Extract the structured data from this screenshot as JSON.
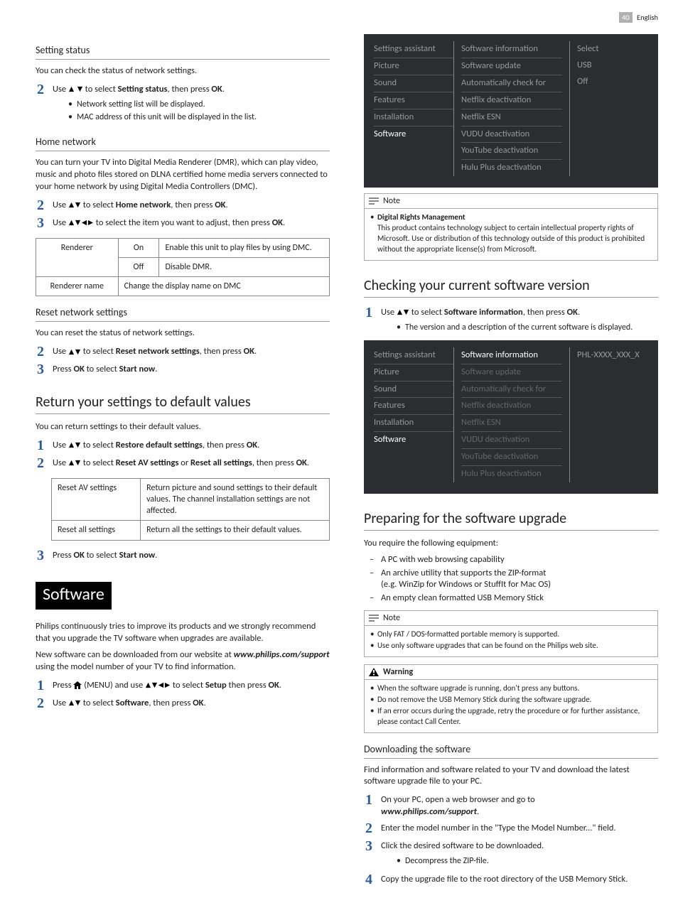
{
  "page": {
    "number": "40",
    "lang": "English"
  },
  "left": {
    "settingStatus": {
      "heading": "Setting status",
      "intro": "You can check the status of network settings.",
      "step2_pre": "Use ",
      "step2_mid": " to select ",
      "step2_target": "Setting status",
      "step2_post": ", then press ",
      "step2_ok": "OK",
      "b1": "Network setting list will be displayed.",
      "b2": "MAC address of this unit will be displayed in the list."
    },
    "homeNetwork": {
      "heading": "Home network",
      "intro": "You can turn your TV into Digital Media Renderer (DMR), which can play video, music and photo files stored on DLNA certified home media servers connected to your home network by using Digital Media Controllers (DMC).",
      "s2_pre": "Use ",
      "s2_mid": " to select ",
      "s2_target": "Home network",
      "s2_post": ", then press ",
      "s2_ok": "OK",
      "s3_pre": "Use ",
      "s3_mid": " to select the item you want to adjust, then press ",
      "s3_ok": "OK",
      "table": {
        "r1c1": "Renderer",
        "r1c2a": "On",
        "r1c3a": "Enable this unit to play files by using DMC.",
        "r1c2b": "Off",
        "r1c3b": "Disable DMR.",
        "r2c1": "Renderer name",
        "r2c2": "Change the display name on DMC"
      }
    },
    "resetNet": {
      "heading": "Reset network settings",
      "intro": "You can reset the status of network settings.",
      "s2_pre": "Use ",
      "s2_mid": " to select ",
      "s2_target": "Reset network settings",
      "s2_post": ", then press ",
      "s2_ok": "OK",
      "s3_pre": "Press ",
      "s3_ok": "OK",
      "s3_mid": " to select ",
      "s3_target": "Start now"
    },
    "returnDefaults": {
      "heading": "Return your settings to default values",
      "intro": "You can return settings to their default values.",
      "s1_pre": "Use ",
      "s1_mid": " to select ",
      "s1_target": "Restore default settings",
      "s1_post": ", then press ",
      "s1_ok": "OK",
      "s2_pre": "Use ",
      "s2_mid": " to select ",
      "s2_t1": "Reset AV settings",
      "s2_or": " or ",
      "s2_t2": "Reset all settings",
      "s2_post": ", then press ",
      "s2_ok": "OK",
      "table": {
        "r1c1": "Reset AV settings",
        "r1c2": "Return picture and sound settings to their default values. The channel installation settings are not affected.",
        "r2c1": "Reset all settings",
        "r2c2": "Return all the settings to their default values."
      },
      "s3_pre": "Press ",
      "s3_ok": "OK",
      "s3_mid": " to select ",
      "s3_target": "Start now"
    },
    "software": {
      "heading": "Software",
      "p1": "Philips continuously tries to improve its products and we strongly recommend that you upgrade the TV software when upgrades are available.",
      "p2_pre": "New software can be downloaded from our website at ",
      "p2_url": "www.philips.com/support",
      "p2_post": " using the model number of your TV to find information.",
      "s1_pre": "Press ",
      "s1_menu": " (MENU) and use ",
      "s1_mid": " to select ",
      "s1_target": "Setup",
      "s1_post": " then press ",
      "s1_ok": "OK",
      "s2_pre": "Use ",
      "s2_mid": " to select ",
      "s2_target": "Software",
      "s2_post": ", then press ",
      "s2_ok": "OK"
    }
  },
  "right": {
    "menu1": {
      "left": [
        "Settings assistant",
        "Picture",
        "Sound",
        "Features",
        "Installation",
        "Software"
      ],
      "leftActiveIndex": 5,
      "mid": [
        "Software information",
        "Software update",
        "Automatically check for",
        "Netflix deactivation",
        "Netflix ESN",
        "VUDU deactivation",
        "YouTube deactivation",
        "Hulu Plus deactivation"
      ],
      "right": [
        "Select",
        "USB",
        "Off"
      ]
    },
    "note1": {
      "label": "Note",
      "bold": "Digital Rights Management",
      "text": "This product contains technology subject to certain intellectual property rights of Microsoft. Use or distribution of this technology outside of this product is prohibited without the appropriate license(s) from Microsoft."
    },
    "checking": {
      "heading": "Checking your current software version",
      "s1_pre": "Use ",
      "s1_mid": " to select ",
      "s1_target": "Software information",
      "s1_post": ", then press ",
      "s1_ok": "OK",
      "b1": "The version and a description of the current software is displayed."
    },
    "menu2": {
      "left": [
        "Settings assistant",
        "Picture",
        "Sound",
        "Features",
        "Installation",
        "Software"
      ],
      "leftActiveIndex": 5,
      "mid": [
        "Software information",
        "Software update",
        "Automatically check for",
        "Netflix deactivation",
        "Netflix ESN",
        "VUDU deactivation",
        "YouTube deactivation",
        "Hulu Plus deactivation"
      ],
      "midActiveIndex": 0,
      "right": [
        "PHL-XXXX_XXX_X"
      ]
    },
    "preparing": {
      "heading": "Preparing for the software upgrade",
      "intro": "You require the following equipment:",
      "d1": "A PC with web browsing capability",
      "d2a": "An archive utility that supports the ZIP-format",
      "d2b": "(e.g. WinZip for Windows or StuffIt for Mac OS)",
      "d3": "An empty clean formatted USB Memory Stick"
    },
    "note2": {
      "label": "Note",
      "l1": "Only FAT / DOS-formatted portable memory is supported.",
      "l2": "Use only software upgrades that can be found on the Philips web site."
    },
    "warn": {
      "label": "Warning",
      "l1": "When the software upgrade is running, don't press any buttons.",
      "l2": "Do not remove the USB Memory Stick during the software upgrade.",
      "l3": "If an error occurs during the upgrade, retry the procedure or for further assistance, please contact Call Center."
    },
    "downloading": {
      "heading": "Downloading the software",
      "intro": "Find information and software related to your TV and download the latest software upgrade file to your PC.",
      "s1": "On your PC, open a web browser and go to",
      "s1_url": "www.philips.com/support",
      "s2": "Enter the model number in the \"Type the Model Number...\" field.",
      "s3": "Click the desired software to be downloaded.",
      "s3_b": "Decompress the ZIP-file.",
      "s4": "Copy the upgrade file to the root directory of the USB Memory Stick."
    }
  }
}
